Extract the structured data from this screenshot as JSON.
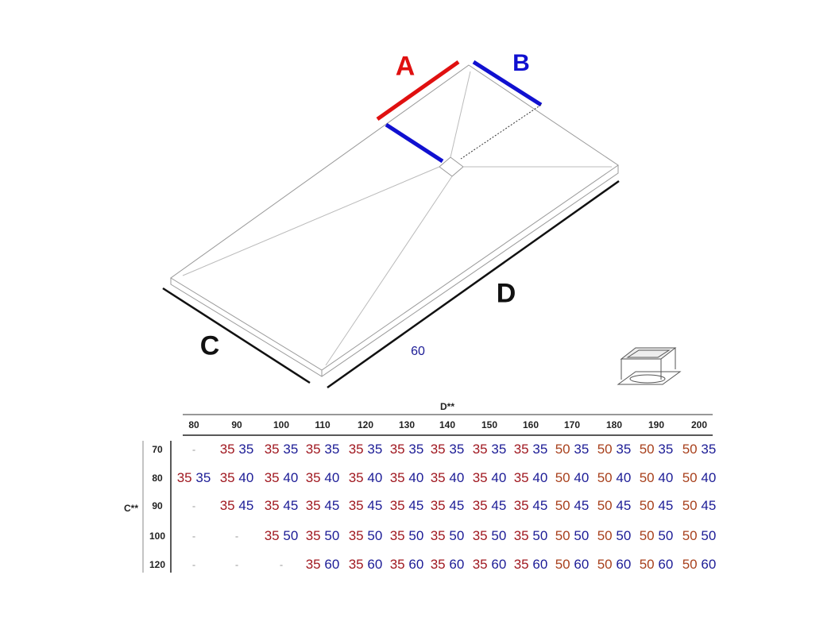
{
  "labels": {
    "a": "A",
    "b": "B",
    "c": "C",
    "d": "D",
    "sixty": "60"
  },
  "colors": {
    "a": "#e01010",
    "b": "#1010d0",
    "small_value": "#a01820",
    "large_value": "#a8401c",
    "second_value": "#1c1c96"
  },
  "table": {
    "column_axis": "D**",
    "row_axis": "C**",
    "columns": [
      "80",
      "90",
      "100",
      "110",
      "120",
      "130",
      "140",
      "150",
      "160",
      "170",
      "180",
      "190",
      "200"
    ],
    "rows": [
      {
        "label": "70",
        "cells": [
          "-",
          "35 35",
          "35 35",
          "35 35",
          "35 35",
          "35 35",
          "35 35",
          "35 35",
          "35 35",
          "50 35",
          "50 35",
          "50 35",
          "50 35"
        ]
      },
      {
        "label": "80",
        "cells": [
          "35 35",
          "35 40",
          "35 40",
          "35 40",
          "35 40",
          "35 40",
          "35 40",
          "35 40",
          "35 40",
          "50 40",
          "50 40",
          "50 40",
          "50 40"
        ]
      },
      {
        "label": "90",
        "cells": [
          "-",
          "35 45",
          "35 45",
          "35 45",
          "35 45",
          "35 45",
          "35 45",
          "35 45",
          "35 45",
          "50 45",
          "50 45",
          "50 45",
          "50 45"
        ]
      },
      {
        "label": "100",
        "cells": [
          "-",
          "-",
          "35 50",
          "35 50",
          "35 50",
          "35 50",
          "35 50",
          "35 50",
          "35 50",
          "50 50",
          "50 50",
          "50 50",
          "50 50"
        ]
      },
      {
        "label": "120",
        "cells": [
          "-",
          "-",
          "-",
          "35 60",
          "35 60",
          "35 60",
          "35 60",
          "35 60",
          "35 60",
          "50 60",
          "50 60",
          "50 60",
          "50 60"
        ]
      }
    ]
  }
}
